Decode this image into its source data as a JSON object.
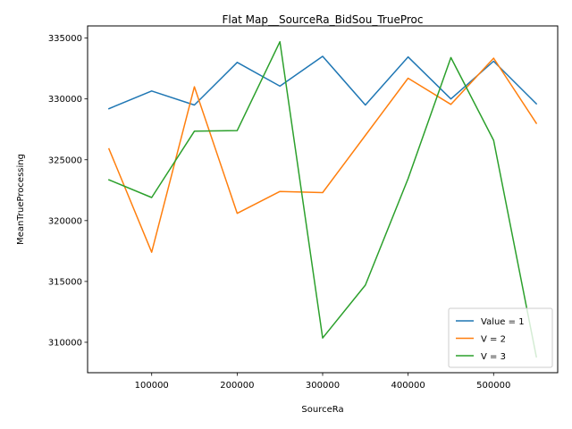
{
  "chart_data": {
    "type": "line",
    "title": "Flat Map__SourceRa_BidSou_TrueProc",
    "xlabel": "SourceRa",
    "ylabel": "MeanTrueProcessing",
    "xlim": [
      25000,
      575000
    ],
    "ylim": [
      307500,
      336000
    ],
    "xticks": [
      100000,
      200000,
      300000,
      400000,
      500000
    ],
    "yticks": [
      310000,
      315000,
      320000,
      325000,
      330000,
      335000
    ],
    "grid": false,
    "legend_position": "lower-right",
    "x": [
      50000,
      100000,
      150000,
      200000,
      250000,
      300000,
      350000,
      400000,
      450000,
      500000,
      550000
    ],
    "series": [
      {
        "name": "Value = 1",
        "color": "#1f77b4",
        "values": [
          329200,
          330650,
          329500,
          333000,
          331050,
          333500,
          329500,
          333450,
          330000,
          333100,
          329600
        ]
      },
      {
        "name": "V = 2",
        "color": "#ff7f0e",
        "values": [
          325900,
          317400,
          331000,
          320600,
          322400,
          322300,
          327000,
          331700,
          329550,
          333350,
          328000
        ]
      },
      {
        "name": "V = 3",
        "color": "#2ca02c",
        "values": [
          323350,
          321900,
          327350,
          327400,
          334700,
          310350,
          314700,
          323450,
          333400,
          326600,
          308800
        ]
      }
    ]
  }
}
